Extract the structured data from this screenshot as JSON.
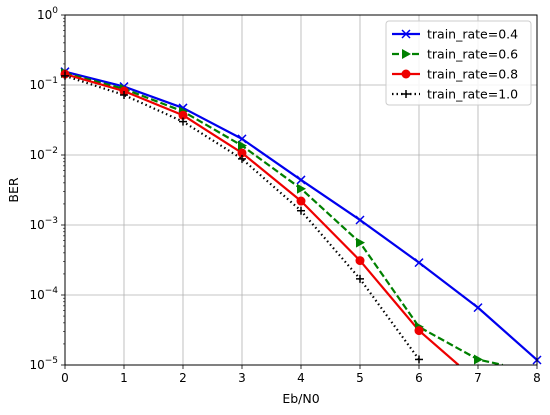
{
  "chart_data": {
    "type": "line",
    "xlabel": "Eb/N0",
    "ylabel": "BER",
    "xlim": [
      0,
      8
    ],
    "ylim": [
      1e-05,
      1
    ],
    "yscale": "log",
    "grid": true,
    "legend_position": "top-right",
    "x_ticks": [
      "0",
      "1",
      "2",
      "3",
      "4",
      "5",
      "6",
      "7",
      "8"
    ],
    "y_ticks": [
      {
        "base": "10",
        "exp": "0"
      },
      {
        "base": "10",
        "exp": "−1"
      },
      {
        "base": "10",
        "exp": "−2"
      },
      {
        "base": "10",
        "exp": "−3"
      },
      {
        "base": "10",
        "exp": "−4"
      },
      {
        "base": "10",
        "exp": "−5"
      }
    ],
    "series": [
      {
        "name": "train_rate=0.4",
        "color": "#0000ee",
        "line_style": "solid",
        "marker": "x",
        "x": [
          0,
          1,
          2,
          3,
          4,
          5,
          6,
          7,
          8
        ],
        "y": [
          0.155,
          0.095,
          0.047,
          0.017,
          0.0044,
          0.00118,
          0.00029,
          6.6e-05,
          1.18e-05
        ]
      },
      {
        "name": "train_rate=0.6",
        "color": "#008000",
        "line_style": "dashed",
        "marker": "triangle-right",
        "x": [
          0,
          1,
          2,
          3,
          4,
          5,
          6,
          7,
          7.42
        ],
        "y": [
          0.148,
          0.088,
          0.042,
          0.0136,
          0.0033,
          0.00056,
          3.5e-05,
          1.2e-05,
          1e-05
        ]
      },
      {
        "name": "train_rate=0.8",
        "color": "#ee0000",
        "line_style": "solid",
        "marker": "circle",
        "x": [
          0,
          1,
          2,
          3,
          4,
          5,
          6,
          6.67
        ],
        "y": [
          0.143,
          0.082,
          0.037,
          0.0107,
          0.0022,
          0.00031,
          3.1e-05,
          1e-05
        ]
      },
      {
        "name": "train_rate=1.0",
        "color": "#000000",
        "line_style": "dotted",
        "marker": "plus",
        "x": [
          0,
          1,
          2,
          3,
          4,
          5,
          6
        ],
        "y": [
          0.135,
          0.072,
          0.03,
          0.0088,
          0.0016,
          0.00017,
          1.2e-05
        ]
      }
    ]
  }
}
